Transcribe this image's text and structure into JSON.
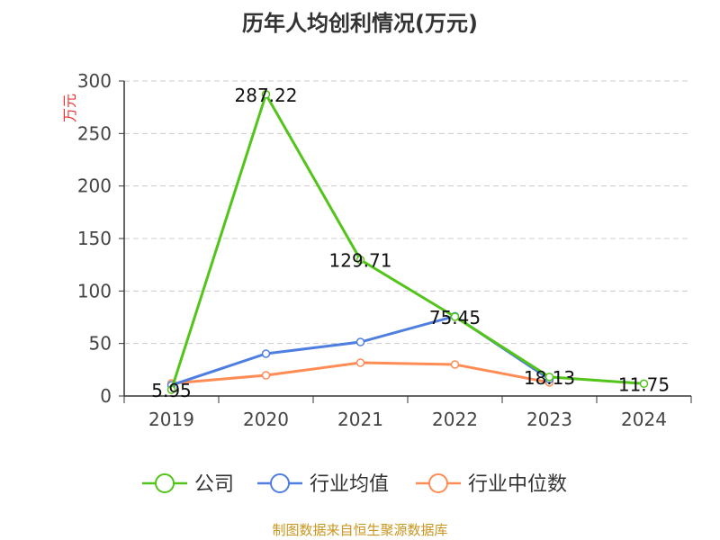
{
  "chart_data": {
    "type": "line",
    "title": "历年人均创利情况(万元)",
    "ylabel": "万元",
    "xlabel": "",
    "categories": [
      "2019",
      "2020",
      "2021",
      "2022",
      "2023",
      "2024"
    ],
    "ylim": [
      0,
      300
    ],
    "yticks": [
      0,
      50,
      100,
      150,
      200,
      250,
      300
    ],
    "grid": true,
    "legend_position": "bottom",
    "series": [
      {
        "name": "公司",
        "color": "#52c41a",
        "values": [
          5.95,
          287.22,
          129.71,
          75.45,
          18.13,
          11.75
        ],
        "labels": [
          "5.95",
          "287.22",
          "129.71",
          "75.45",
          "18.13",
          "11.75"
        ]
      },
      {
        "name": "行业均值",
        "color": "#4e7fe0",
        "values": [
          10.3,
          40.3,
          51.4,
          76,
          16,
          null
        ]
      },
      {
        "name": "行业中位数",
        "color": "#ff8c55",
        "values": [
          12,
          19.7,
          31.7,
          30,
          12.9,
          null
        ]
      }
    ]
  },
  "source": "制图数据来自恒生聚源数据库"
}
